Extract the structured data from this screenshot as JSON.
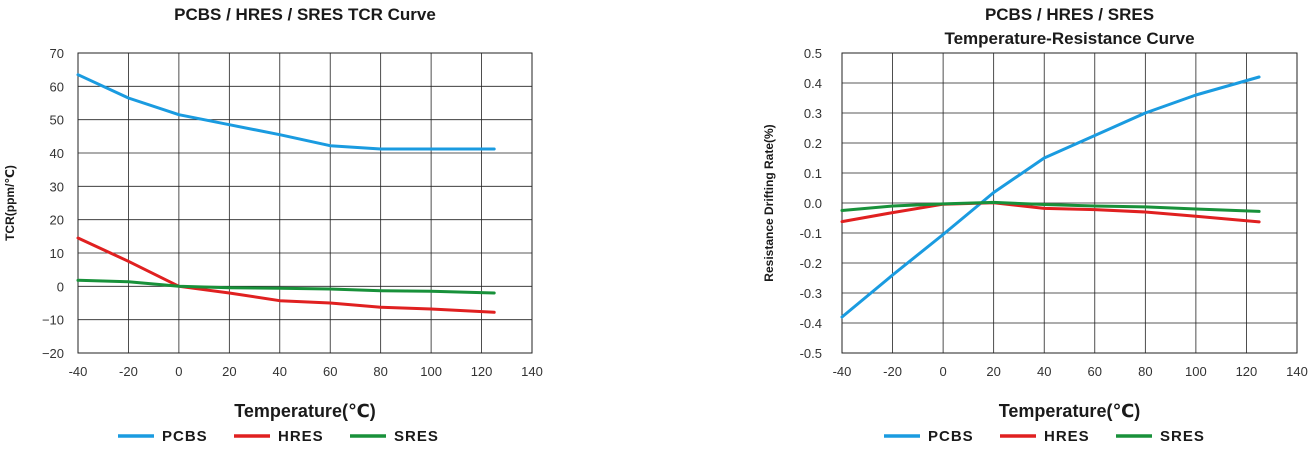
{
  "chart_data": [
    {
      "type": "line",
      "title_lines": [
        "PCBS / HRES / SRES  TCR Curve"
      ],
      "xlabel": "Temperature(℃)",
      "ylabel": "TCR(ppm/℃)",
      "xlim": [
        -40,
        140
      ],
      "ylim": [
        -20,
        70
      ],
      "xticks": [
        -40,
        -20,
        0,
        20,
        40,
        60,
        80,
        100,
        120,
        140
      ],
      "yticks": [
        70,
        60,
        50,
        40,
        30,
        20,
        10,
        0,
        -10,
        -20
      ],
      "ytick_labels": [
        "70",
        "60",
        "50",
        "40",
        "30",
        "20",
        "10",
        "0",
        "−10",
        "−20"
      ],
      "grid": true,
      "legend_position": "bottom",
      "series": [
        {
          "name": "PCBS",
          "color": "#1a9be0",
          "x": [
            -40,
            -20,
            0,
            20,
            40,
            60,
            80,
            100,
            125
          ],
          "y": [
            63.5,
            56.5,
            51.5,
            48.5,
            45.5,
            42.2,
            41.2,
            41.2,
            41.2
          ]
        },
        {
          "name": "HRES",
          "color": "#e02020",
          "x": [
            -40,
            -20,
            0,
            20,
            40,
            60,
            80,
            100,
            125
          ],
          "y": [
            14.5,
            7.5,
            0,
            -2,
            -4.3,
            -5,
            -6.3,
            -6.8,
            -7.8
          ]
        },
        {
          "name": "SRES",
          "color": "#18913a",
          "x": [
            -40,
            -20,
            0,
            20,
            40,
            60,
            80,
            100,
            125
          ],
          "y": [
            1.8,
            1.4,
            0,
            -0.4,
            -0.6,
            -0.8,
            -1.3,
            -1.5,
            -2
          ]
        }
      ]
    },
    {
      "type": "line",
      "title_lines": [
        "PCBS / HRES / SRES",
        "Temperature-Resistance Curve"
      ],
      "xlabel": "Temperature(℃)",
      "ylabel": "Resistance Drifting Rate(%)",
      "xlim": [
        -40,
        140
      ],
      "ylim": [
        -0.5,
        0.5
      ],
      "xticks": [
        -40,
        -20,
        0,
        20,
        40,
        60,
        80,
        100,
        120,
        140
      ],
      "yticks": [
        0.5,
        0.4,
        0.3,
        0.2,
        0.1,
        0,
        -0.1,
        -0.2,
        -0.3,
        -0.4,
        -0.5
      ],
      "ytick_labels": [
        "0.5",
        "0.4",
        "0.3",
        "0.2",
        "0.1",
        "0.0",
        "-0.1",
        "-0.2",
        "-0.3",
        "-0.4",
        "-0.5"
      ],
      "grid": true,
      "legend_position": "bottom",
      "series": [
        {
          "name": "PCBS",
          "color": "#1a9be0",
          "x": [
            -40,
            -20,
            0,
            20,
            40,
            60,
            80,
            100,
            125
          ],
          "y": [
            -0.38,
            -0.24,
            -0.105,
            0.035,
            0.15,
            0.225,
            0.3,
            0.36,
            0.42
          ]
        },
        {
          "name": "HRES",
          "color": "#e02020",
          "x": [
            -40,
            -20,
            0,
            20,
            40,
            60,
            80,
            100,
            125
          ],
          "y": [
            -0.062,
            -0.032,
            -0.004,
            0.001,
            -0.018,
            -0.022,
            -0.03,
            -0.044,
            -0.063
          ]
        },
        {
          "name": "SRES",
          "color": "#18913a",
          "x": [
            -40,
            -20,
            0,
            20,
            40,
            60,
            80,
            100,
            125
          ],
          "y": [
            -0.025,
            -0.01,
            -0.003,
            0.002,
            -0.005,
            -0.01,
            -0.013,
            -0.02,
            -0.028
          ]
        }
      ]
    }
  ]
}
